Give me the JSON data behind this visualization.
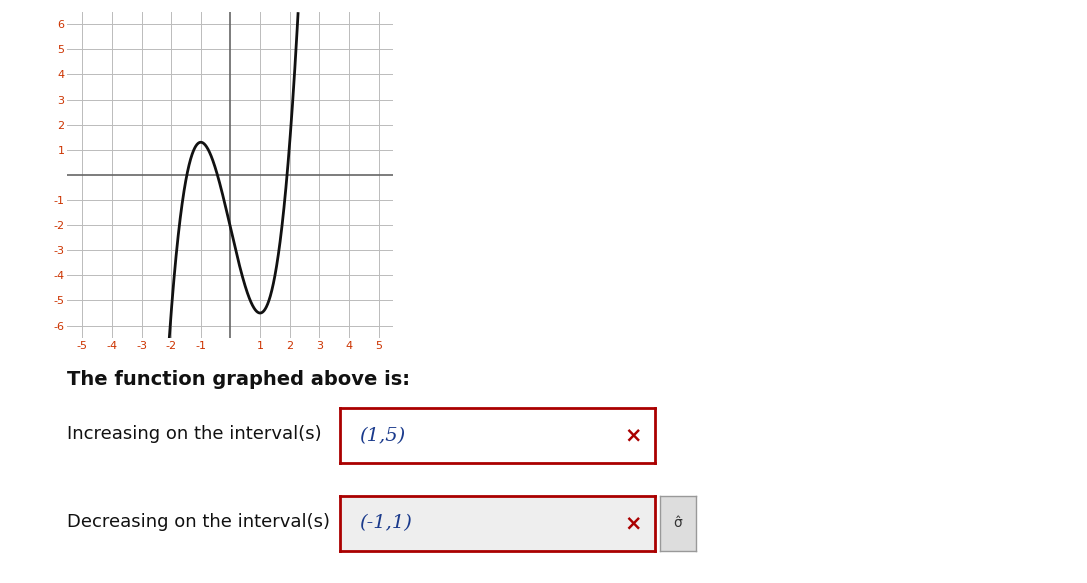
{
  "xlim": [
    -5.5,
    5.5
  ],
  "ylim": [
    -6.5,
    6.5
  ],
  "xticks": [
    -5,
    -4,
    -3,
    -2,
    -1,
    1,
    2,
    3,
    4,
    5
  ],
  "yticks": [
    -6,
    -5,
    -4,
    -3,
    -2,
    -1,
    1,
    2,
    3,
    4,
    5,
    6
  ],
  "grid_color": "#bbbbbb",
  "axis_color": "#666666",
  "curve_color": "#111111",
  "background_color": "#ffffff",
  "text_color": "#1a3a8c",
  "tick_color": "#cc3300",
  "title_text": "The function graphed above is:",
  "increasing_label": "Increasing on the interval(s)",
  "increasing_value": "(1,5)",
  "decreasing_label": "Decreasing on the interval(s)",
  "decreasing_value": "(-1,1)",
  "box_border_color": "#aa0000",
  "x_button_color": "#aa0000",
  "curve_a": 1.7,
  "curve_d": -2.1,
  "curve_xstart": -2.55,
  "curve_xend": 4.75
}
